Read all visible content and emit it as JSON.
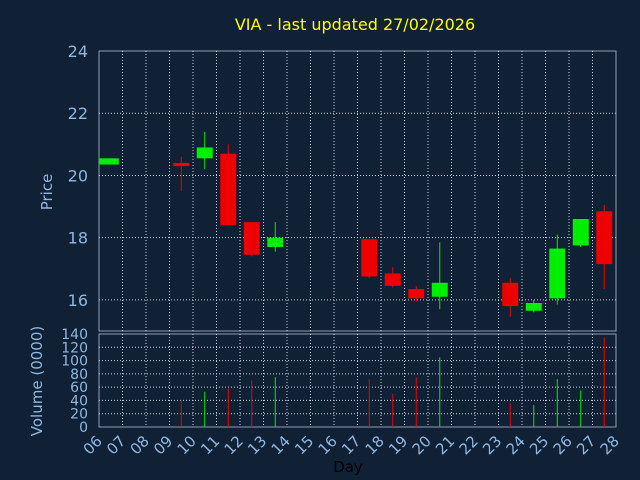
{
  "chart_data": {
    "type": "candlestick",
    "title": "VIA - last updated 27/02/2026",
    "xlabel": "Day",
    "price_ylabel": "Price",
    "volume_ylabel": "Volume (0000)",
    "x_ticks": [
      "06",
      "07",
      "08",
      "09",
      "10",
      "11",
      "12",
      "13",
      "14",
      "15",
      "16",
      "17",
      "18",
      "19",
      "20",
      "21",
      "22",
      "23",
      "24",
      "25",
      "26",
      "27",
      "28"
    ],
    "price_ylim": [
      15,
      24
    ],
    "price_ticks": [
      16,
      18,
      20,
      22,
      24
    ],
    "volume_ylim": [
      0,
      140
    ],
    "volume_ticks": [
      0,
      20,
      40,
      60,
      80,
      100,
      120,
      140
    ],
    "grid": true,
    "colors": {
      "up": "#00ee00",
      "down": "#ee0000",
      "title": "#ffff00",
      "axis_text": "#8fb8e0",
      "grid": "#c8d2dc",
      "background": "#102035"
    },
    "candles": [
      {
        "day": "06",
        "open": 20.35,
        "close": 20.55,
        "high": 20.55,
        "low": 20.35,
        "volume": 0
      },
      {
        "day": "09",
        "open": 20.4,
        "close": 20.3,
        "high": 20.6,
        "low": 19.5,
        "volume": 40
      },
      {
        "day": "10",
        "open": 20.55,
        "close": 20.9,
        "high": 21.4,
        "low": 20.2,
        "volume": 53
      },
      {
        "day": "11",
        "open": 20.7,
        "close": 18.4,
        "high": 21.0,
        "low": 18.4,
        "volume": 58
      },
      {
        "day": "12",
        "open": 18.5,
        "close": 17.45,
        "high": 18.5,
        "low": 17.4,
        "volume": 70
      },
      {
        "day": "13",
        "open": 17.7,
        "close": 18.0,
        "high": 18.5,
        "low": 17.55,
        "volume": 75
      },
      {
        "day": "17",
        "open": 17.95,
        "close": 16.75,
        "high": 17.95,
        "low": 16.7,
        "volume": 72
      },
      {
        "day": "18",
        "open": 16.85,
        "close": 16.45,
        "high": 17.05,
        "low": 16.4,
        "volume": 50
      },
      {
        "day": "19",
        "open": 16.35,
        "close": 16.05,
        "high": 16.45,
        "low": 15.95,
        "volume": 75
      },
      {
        "day": "20",
        "open": 16.1,
        "close": 16.55,
        "high": 17.85,
        "low": 15.7,
        "volume": 105
      },
      {
        "day": "23",
        "open": 16.55,
        "close": 15.8,
        "high": 16.7,
        "low": 15.45,
        "volume": 36
      },
      {
        "day": "24",
        "open": 15.65,
        "close": 15.9,
        "high": 16.0,
        "low": 15.6,
        "volume": 33
      },
      {
        "day": "25",
        "open": 16.05,
        "close": 17.65,
        "high": 18.1,
        "low": 15.85,
        "volume": 72
      },
      {
        "day": "26",
        "open": 17.75,
        "close": 18.6,
        "high": 18.6,
        "low": 17.7,
        "volume": 55
      },
      {
        "day": "27",
        "open": 18.85,
        "close": 17.15,
        "high": 19.05,
        "low": 16.35,
        "volume": 135
      }
    ]
  }
}
